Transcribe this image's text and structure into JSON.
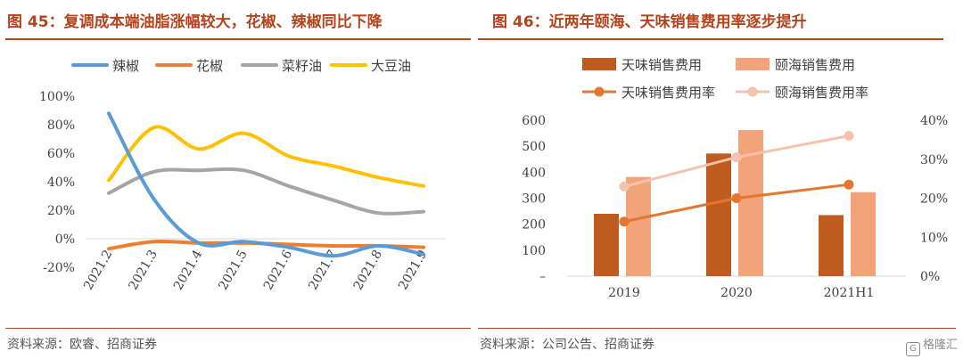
{
  "left": {
    "title": "图 45：复调成本端油脂涨幅较大，花椒、辣椒同比下降",
    "source": "资料来源：欧睿、招商证券"
  },
  "right": {
    "title": "图 46：近两年颐海、天味销售费用率逐步提升",
    "source": "资料来源：公司公告、招商证券"
  },
  "watermark": {
    "icon": "gelonghui-logo-icon",
    "text": "格隆汇"
  },
  "chart_data": [
    {
      "type": "line",
      "categories": [
        "2021.2",
        "2021.3",
        "2021.4",
        "2021.5",
        "2021.6",
        "2021.7",
        "2021.8",
        "2021.9"
      ],
      "y_ticks": [
        "100%",
        "80%",
        "60%",
        "40%",
        "20%",
        "0%",
        "-20%"
      ],
      "ylim": [
        -20,
        100
      ],
      "grid": false,
      "legend": "top",
      "series": [
        {
          "name": "辣椒",
          "color": "#5b9bd5",
          "values": [
            88,
            28,
            -3,
            -2,
            -6,
            -12,
            -5,
            -11
          ]
        },
        {
          "name": "花椒",
          "color": "#ed7d31",
          "values": [
            -7,
            -2,
            -3,
            -3,
            -4,
            -5,
            -5,
            -6
          ]
        },
        {
          "name": "菜籽油",
          "color": "#a5a5a5",
          "values": [
            32,
            47,
            48,
            48,
            37,
            27,
            18,
            19
          ]
        },
        {
          "name": "大豆油",
          "color": "#ffc000",
          "values": [
            41,
            78,
            63,
            74,
            58,
            51,
            43,
            37
          ]
        }
      ]
    },
    {
      "type": "bar",
      "categories": [
        "2019",
        "2020",
        "2021H1"
      ],
      "y_left_ticks": [
        "600",
        "500",
        "400",
        "300",
        "200",
        "100",
        "–"
      ],
      "y_right_ticks": [
        "40%",
        "30%",
        "20%",
        "10%",
        "0%"
      ],
      "ylim": [
        0,
        600
      ],
      "ylim_right": [
        0,
        40
      ],
      "legend": "top",
      "bars": [
        {
          "name": "天味销售费用",
          "color": "#bf5b1f",
          "values": [
            240,
            472,
            235
          ]
        },
        {
          "name": "颐海销售费用",
          "color": "#f2a37a",
          "values": [
            382,
            562,
            323
          ]
        }
      ],
      "lines": [
        {
          "name": "天味销售费用率",
          "color": "#e5762f",
          "values": [
            14,
            20,
            23.5
          ]
        },
        {
          "name": "颐海销售费用率",
          "color": "#f5c2ac",
          "values": [
            23,
            30.5,
            36
          ]
        }
      ]
    }
  ]
}
